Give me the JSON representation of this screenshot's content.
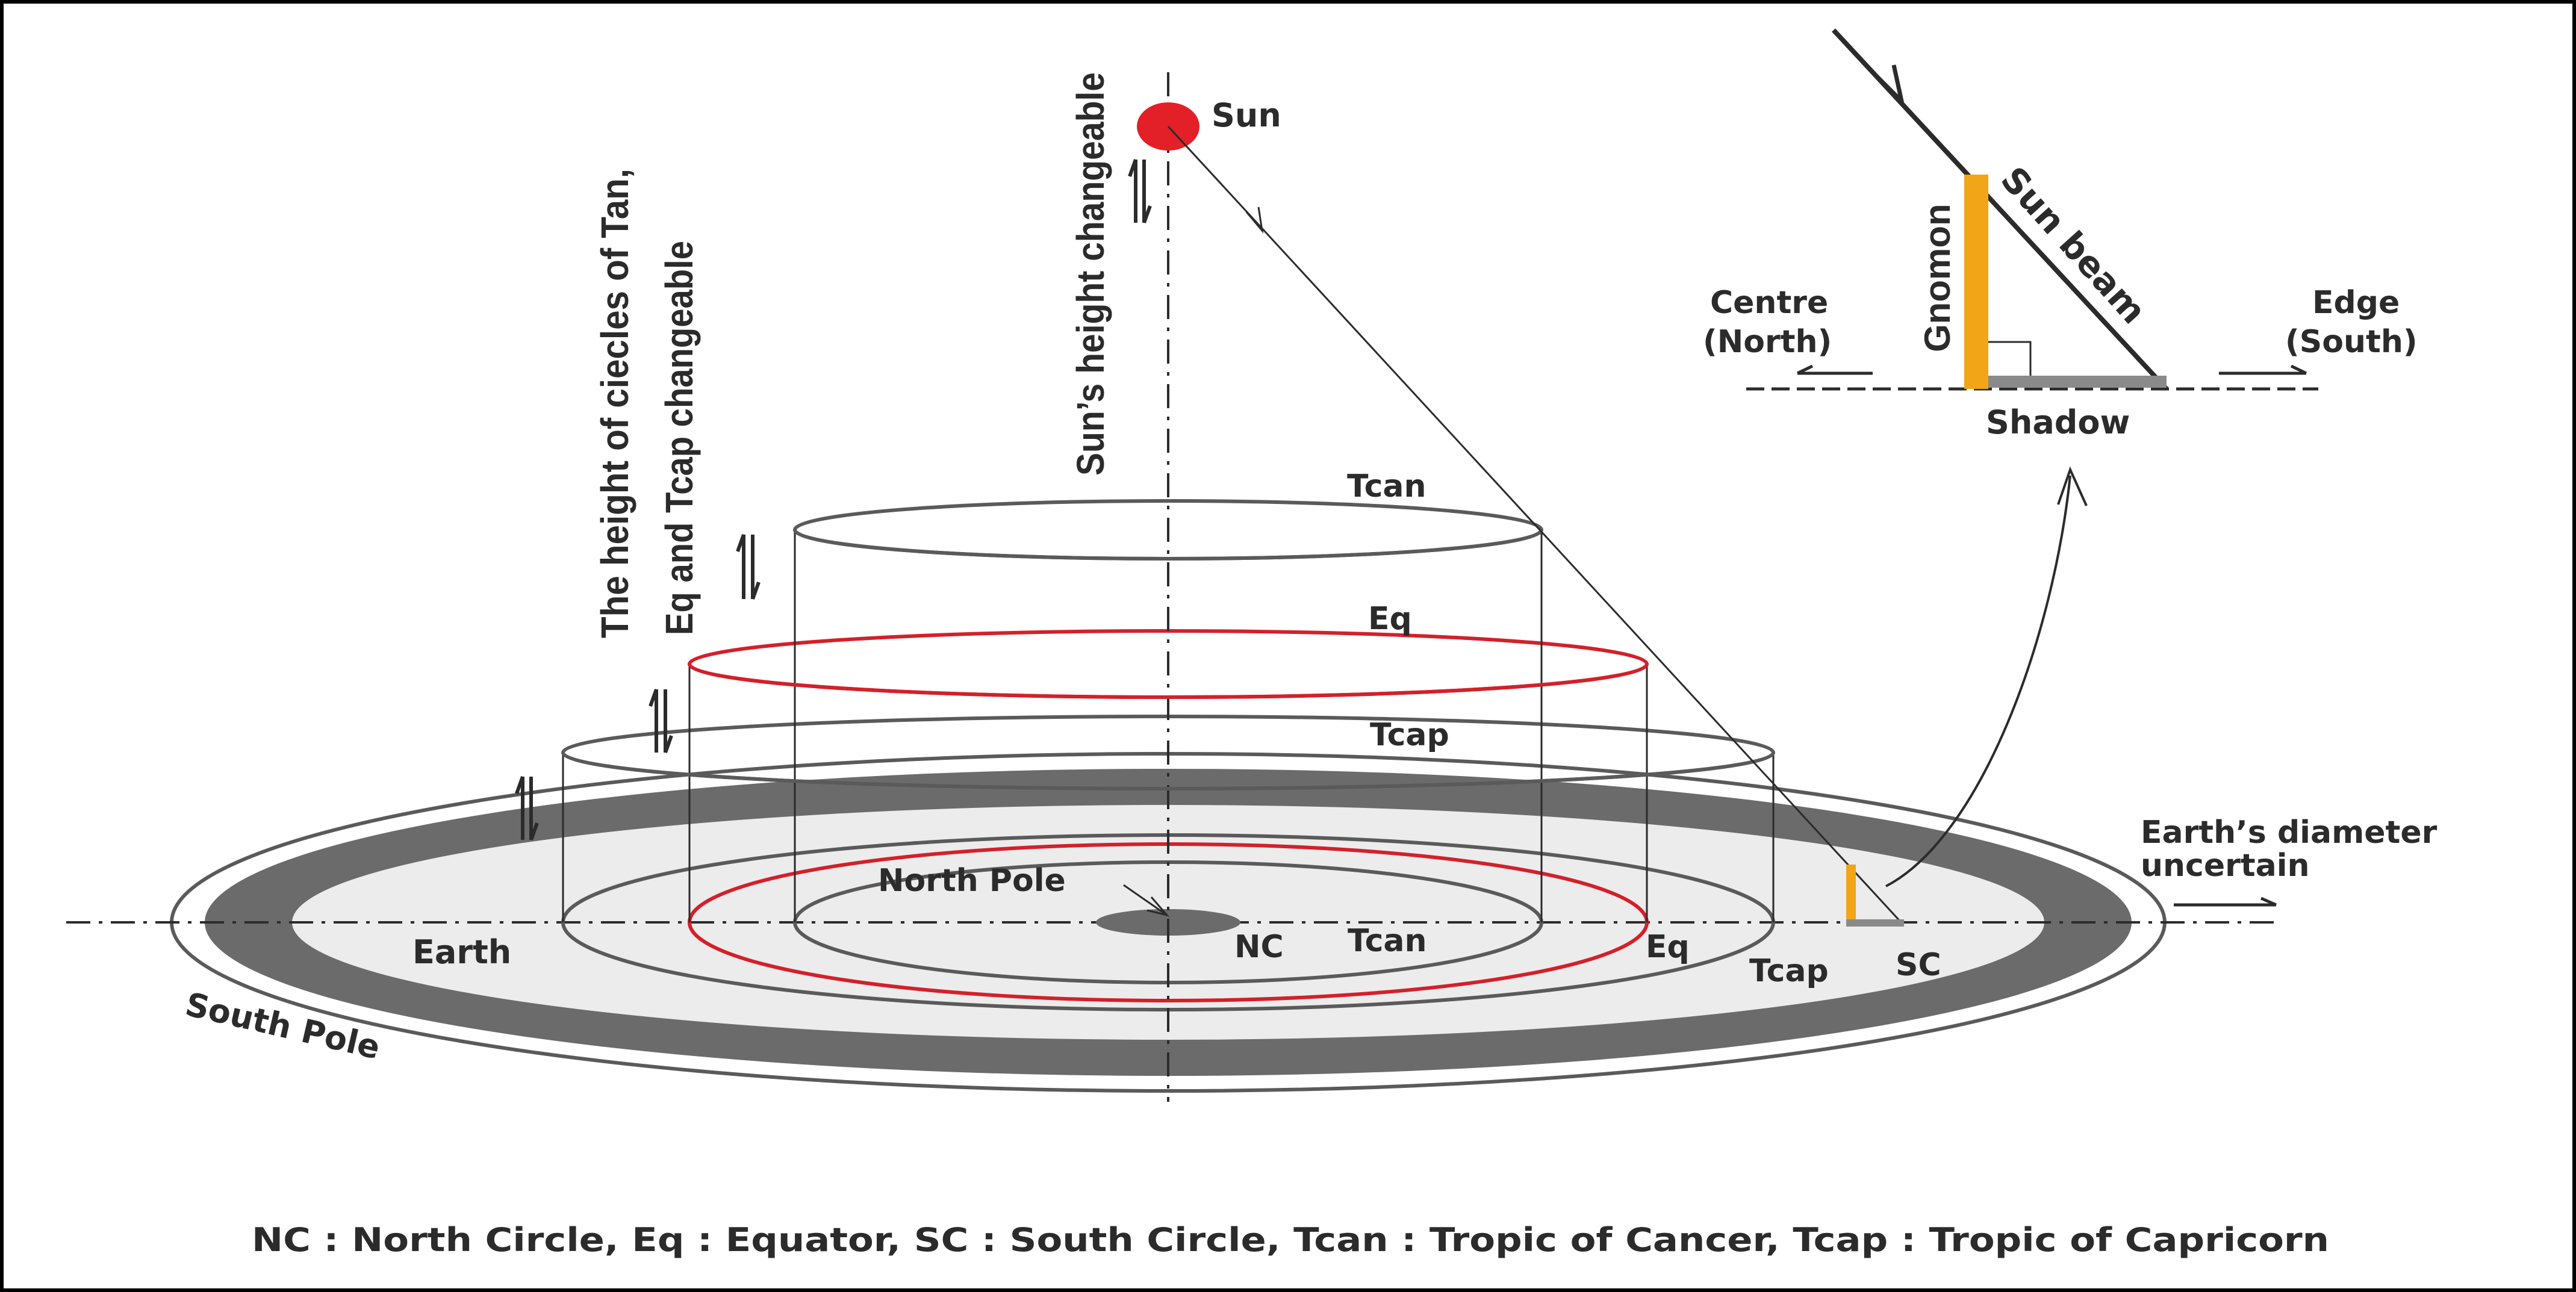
{
  "labels": {
    "sun": "Sun",
    "sun_height": "Sun’s height changeable",
    "circles_height_line1": "The height of ciecles of Tan,",
    "circles_height_line2": "Eq and Tcap changeable",
    "tcan_upper": "Tcan",
    "eq_upper": "Eq",
    "tcap_upper": "Tcap",
    "north_pole": "North Pole",
    "nc": "NC",
    "tcan_lower": "Tcan",
    "eq_lower": "Eq",
    "tcap_lower": "Tcap",
    "sc": "SC",
    "earth": "Earth",
    "south_pole": "South Pole",
    "earth_diameter_line1": "Earth’s diameter",
    "earth_diameter_line2": "uncertain",
    "inset_centre_line1": "Centre",
    "inset_centre_line2": "(North)",
    "inset_edge_line1": "Edge",
    "inset_edge_line2": "(South)",
    "inset_gnomon": "Gnomon",
    "inset_sun_beam": "Sun beam",
    "inset_shadow": "Shadow"
  },
  "legend": "NC : North Circle, Eq : Equator,  SC : South Circle, Tcan : Tropic of Cancer,   Tcap : Tropic of Capricorn",
  "colors": {
    "sun": "#e32027",
    "equator": "#d4202a",
    "circle_stroke": "#5a5a5a",
    "earth_band": "#6b6b6b",
    "earth_fill": "#ececec",
    "gnomon": "#f2a516",
    "shadow": "#8a8a8a",
    "border": "#000000"
  }
}
